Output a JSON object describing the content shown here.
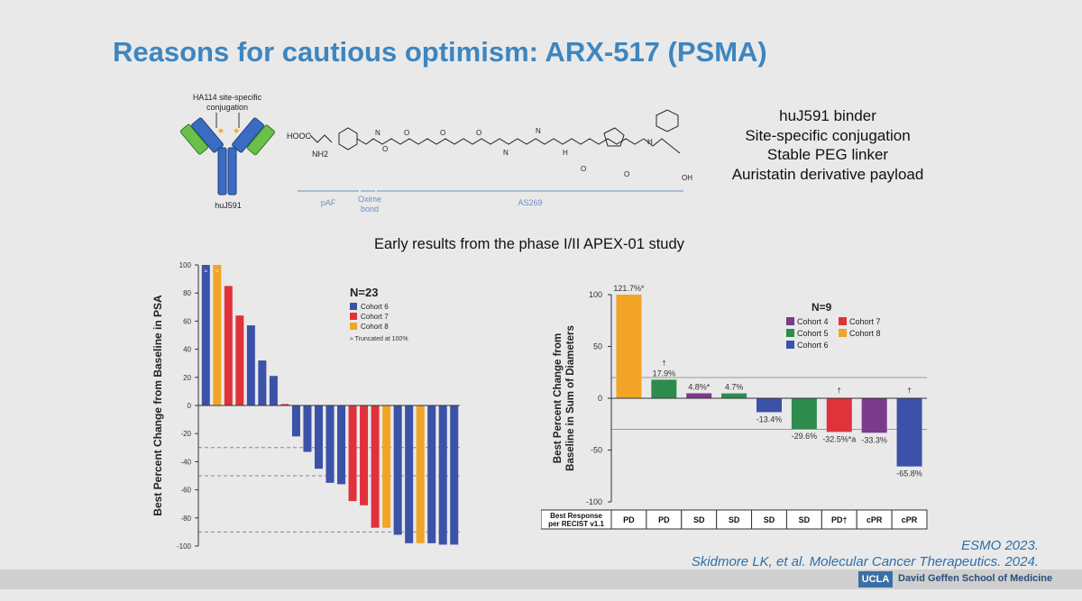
{
  "slide": {
    "title": "Reasons for cautious optimism: ARX-517 (PSMA)",
    "antibody": {
      "conjugation_label_line1": "HA114 site-specific",
      "conjugation_label_line2": "conjugation",
      "name": "huJ591"
    },
    "structure": {
      "hooc": "HOOC",
      "nh2": "NH2",
      "labels": [
        "pAF",
        "Oxime",
        "bond",
        "AS269"
      ],
      "atoms": [
        "O",
        "N",
        "H",
        "N",
        "N",
        "H",
        "N",
        "H",
        "OH"
      ]
    },
    "features": [
      "huJ591 binder",
      "Site-specific conjugation",
      "Stable PEG linker",
      "Auristatin derivative payload"
    ],
    "subtitle": "Early results from the phase I/II APEX-01 study",
    "source_line1": "ESMO 2023.",
    "source_line2": "Skidmore LK, et al. Molecular Cancer Therapeutics. 2024.",
    "footer_badge": "UCLA",
    "footer_institution": "David Geffen School of Medicine",
    "colors": {
      "title": "#3d86c0",
      "cohort4": "#7b3a8a",
      "cohort5": "#2e8b4e",
      "cohort6": "#3b52a8",
      "cohort7": "#e0323a",
      "cohort8": "#f2a427"
    }
  },
  "chart_data": [
    {
      "type": "bar",
      "title": "N=23",
      "ylabel": "Best Percent Change from Baseline in PSA",
      "ylim": [
        -100,
        100
      ],
      "yticks": [
        100,
        80,
        60,
        40,
        20,
        0,
        -20,
        -40,
        -60,
        -80,
        -100
      ],
      "reference_lines": [
        -30,
        -50,
        -90
      ],
      "legend": [
        {
          "name": "Cohort 6",
          "color": "#3b52a8"
        },
        {
          "name": "Cohort 7",
          "color": "#e0323a"
        },
        {
          "name": "Cohort 8",
          "color": "#f2a427"
        }
      ],
      "legend_note": "≈ Truncated at 100%",
      "truncation_marker": "≈",
      "bars": [
        {
          "value": 100,
          "cohort": "Cohort 6",
          "truncated": true
        },
        {
          "value": 100,
          "cohort": "Cohort 8",
          "truncated": true
        },
        {
          "value": 85,
          "cohort": "Cohort 7"
        },
        {
          "value": 64,
          "cohort": "Cohort 7"
        },
        {
          "value": 57,
          "cohort": "Cohort 6"
        },
        {
          "value": 32,
          "cohort": "Cohort 6"
        },
        {
          "value": 21,
          "cohort": "Cohort 6"
        },
        {
          "value": 1,
          "cohort": "Cohort 7"
        },
        {
          "value": -22,
          "cohort": "Cohort 6"
        },
        {
          "value": -33,
          "cohort": "Cohort 6"
        },
        {
          "value": -45,
          "cohort": "Cohort 6"
        },
        {
          "value": -55,
          "cohort": "Cohort 6"
        },
        {
          "value": -56,
          "cohort": "Cohort 6"
        },
        {
          "value": -68,
          "cohort": "Cohort 7"
        },
        {
          "value": -71,
          "cohort": "Cohort 7"
        },
        {
          "value": -87,
          "cohort": "Cohort 7"
        },
        {
          "value": -87,
          "cohort": "Cohort 8"
        },
        {
          "value": -92,
          "cohort": "Cohort 6"
        },
        {
          "value": -98,
          "cohort": "Cohort 6"
        },
        {
          "value": -98,
          "cohort": "Cohort 8"
        },
        {
          "value": -98,
          "cohort": "Cohort 6"
        },
        {
          "value": -99,
          "cohort": "Cohort 6"
        },
        {
          "value": -99,
          "cohort": "Cohort 6"
        }
      ]
    },
    {
      "type": "bar",
      "title": "N=9",
      "ylabel_line1": "Best Percent Change from",
      "ylabel_line2": "Baseline in Sum of Diameters",
      "ylim": [
        -100,
        100
      ],
      "yticks": [
        100,
        50,
        0,
        -50,
        -100
      ],
      "reference_lines": [
        20,
        -30
      ],
      "legend": [
        {
          "name": "Cohort 4",
          "color": "#7b3a8a"
        },
        {
          "name": "Cohort 7",
          "color": "#e0323a"
        },
        {
          "name": "Cohort 5",
          "color": "#2e8b4e"
        },
        {
          "name": "Cohort 8",
          "color": "#f2a427"
        },
        {
          "name": "Cohort 6",
          "color": "#3b52a8"
        }
      ],
      "response_header_line1": "Best Response",
      "response_header_line2": "per RECIST v1.1",
      "bars": [
        {
          "value": 121.7,
          "label": "121.7%*",
          "cohort": "Cohort 8",
          "response": "PD",
          "truncated": true
        },
        {
          "value": 17.9,
          "label": "17.9%",
          "marker": "†",
          "cohort": "Cohort 5",
          "response": "PD"
        },
        {
          "value": 4.8,
          "label": "4.8%*",
          "cohort": "Cohort 4",
          "response": "SD"
        },
        {
          "value": 4.7,
          "label": "4.7%",
          "cohort": "Cohort 5",
          "response": "SD"
        },
        {
          "value": -13.4,
          "label": "-13.4%",
          "cohort": "Cohort 6",
          "response": "SD"
        },
        {
          "value": -29.6,
          "label": "-29.6%",
          "cohort": "Cohort 5",
          "response": "SD"
        },
        {
          "value": -32.5,
          "label": "-32.5%*a",
          "marker": "†",
          "cohort": "Cohort 7",
          "response": "PD†"
        },
        {
          "value": -33.3,
          "label": "-33.3%",
          "cohort": "Cohort 4",
          "response": "cPR"
        },
        {
          "value": -65.8,
          "label": "-65.8%",
          "marker": "†",
          "cohort": "Cohort 6",
          "response": "cPR"
        }
      ]
    }
  ]
}
